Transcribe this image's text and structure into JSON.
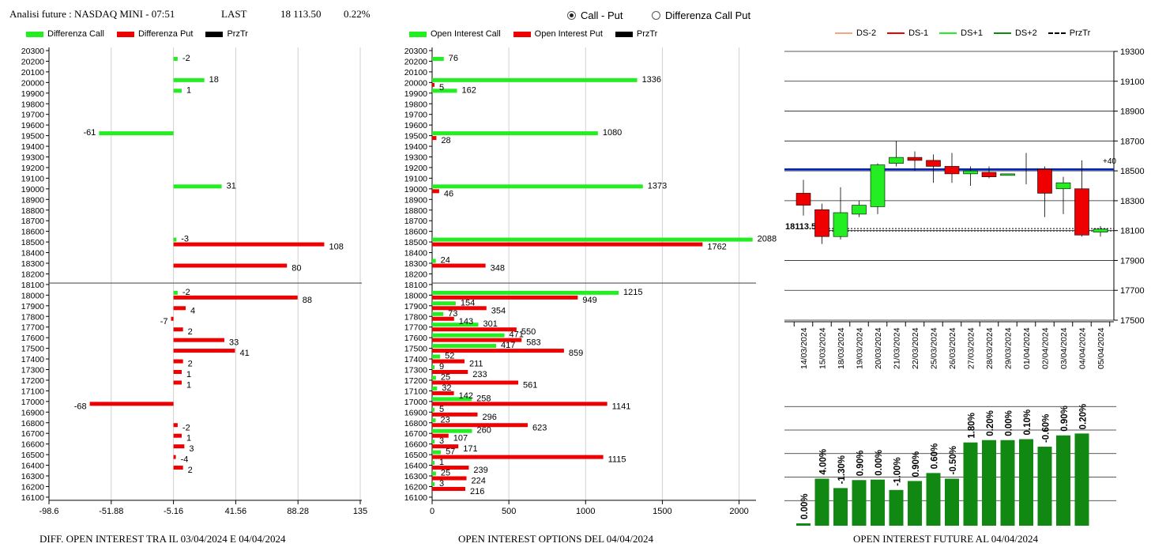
{
  "header": {
    "instrument": "Analisi future : NASDAQ MINI - 07:51",
    "last_label": "LAST",
    "last_value": "18 113.50",
    "change_pct": "0.22%"
  },
  "radios": [
    {
      "label": "Call - Put",
      "selected": true
    },
    {
      "label": "Differenza Call Put",
      "selected": false
    }
  ],
  "captions": {
    "left": "DIFF. OPEN INTEREST TRA IL 03/04/2024 E 04/04/2024",
    "middle": "OPEN INTEREST OPTIONS DEL 04/04/2024",
    "right": "OPEN INTEREST FUTURE AL 04/04/2024"
  },
  "legends": {
    "left": [
      {
        "label": "Differenza Call",
        "color": "#22ee22"
      },
      {
        "label": "Differenza Put",
        "color": "#ee0000"
      },
      {
        "label": "PrzTr",
        "color": "#000000"
      }
    ],
    "middle": [
      {
        "label": "Open Interest Call",
        "color": "#22ee22"
      },
      {
        "label": "Open Interest Put",
        "color": "#ee0000"
      },
      {
        "label": "PrzTr",
        "color": "#000000"
      }
    ],
    "right": [
      {
        "label": "DS-2",
        "color": "#f4a582"
      },
      {
        "label": "DS-1",
        "color": "#ee0000"
      },
      {
        "label": "DS+1",
        "color": "#22ee22"
      },
      {
        "label": "DS+2",
        "color": "#118811"
      },
      {
        "label": "PrzTr",
        "color": "#000000"
      }
    ]
  },
  "chart_data": [
    {
      "type": "bar",
      "orientation": "horizontal",
      "strikes": [
        20300,
        20200,
        20100,
        20000,
        19900,
        19800,
        19700,
        19600,
        19500,
        19400,
        19300,
        19200,
        19100,
        19000,
        18900,
        18800,
        18700,
        18600,
        18500,
        18400,
        18300,
        18200,
        18100,
        18000,
        17900,
        17800,
        17700,
        17600,
        17500,
        17400,
        17300,
        17200,
        17100,
        17000,
        16900,
        16800,
        16700,
        16600,
        16500,
        16400,
        16300,
        16200,
        16100
      ],
      "xticks": [
        "-98.6",
        "-51.88",
        "-5.16",
        "41.56",
        "88.28",
        "135"
      ],
      "xlim": [
        -98.6,
        135
      ],
      "price_level": 18113.5,
      "series": [
        {
          "name": "Differenza Call",
          "color": "#22ee22",
          "values": [
            null,
            -2,
            null,
            18,
            1,
            null,
            null,
            null,
            -61,
            null,
            null,
            null,
            null,
            31,
            null,
            null,
            null,
            null,
            -3,
            null,
            null,
            null,
            null,
            -2,
            null,
            null,
            null,
            null,
            null,
            null,
            null,
            null,
            null,
            null,
            null,
            null,
            null,
            null,
            null,
            null,
            null,
            null,
            null
          ]
        },
        {
          "name": "Differenza Put",
          "color": "#ee0000",
          "values": [
            null,
            null,
            null,
            null,
            null,
            null,
            null,
            null,
            null,
            null,
            null,
            null,
            null,
            null,
            null,
            null,
            null,
            null,
            108,
            null,
            80,
            null,
            null,
            88,
            4,
            -7,
            2,
            33,
            41,
            2,
            1,
            1,
            null,
            -68,
            null,
            -2,
            1,
            3,
            -4,
            2,
            null,
            null,
            null
          ]
        }
      ]
    },
    {
      "type": "bar",
      "orientation": "horizontal",
      "strikes": [
        20300,
        20200,
        20100,
        20000,
        19900,
        19800,
        19700,
        19600,
        19500,
        19400,
        19300,
        19200,
        19100,
        19000,
        18900,
        18800,
        18700,
        18600,
        18500,
        18400,
        18300,
        18200,
        18100,
        18000,
        17900,
        17800,
        17700,
        17600,
        17500,
        17400,
        17300,
        17200,
        17100,
        17000,
        16900,
        16800,
        16700,
        16600,
        16500,
        16400,
        16300,
        16200,
        16100
      ],
      "xticks": [
        "0",
        "500",
        "1000",
        "1500",
        "2000"
      ],
      "xlim": [
        0,
        2100
      ],
      "price_level": 18113.5,
      "series": [
        {
          "name": "Open Interest Call",
          "color": "#22ee22",
          "values": [
            null,
            76,
            null,
            1336,
            162,
            null,
            null,
            null,
            1080,
            null,
            null,
            null,
            null,
            1373,
            null,
            null,
            null,
            null,
            2088,
            null,
            24,
            null,
            null,
            1215,
            154,
            73,
            301,
            471,
            417,
            52,
            9,
            25,
            32,
            258,
            5,
            23,
            260,
            3,
            57,
            1,
            25,
            3,
            null
          ]
        },
        {
          "name": "Open Interest Put",
          "color": "#ee0000",
          "values": [
            null,
            null,
            null,
            5,
            null,
            null,
            null,
            null,
            28,
            null,
            null,
            null,
            null,
            46,
            null,
            null,
            null,
            null,
            1762,
            null,
            348,
            null,
            null,
            949,
            354,
            143,
            550,
            583,
            859,
            211,
            233,
            561,
            142,
            1141,
            296,
            623,
            107,
            171,
            1115,
            239,
            224,
            216,
            null
          ]
        }
      ]
    },
    {
      "type": "candlestick",
      "dates": [
        "14/03/2024",
        "15/03/2024",
        "18/03/2024",
        "19/03/2024",
        "20/03/2024",
        "21/03/2024",
        "22/03/2024",
        "25/03/2024",
        "26/03/2024",
        "27/03/2024",
        "28/03/2024",
        "29/03/2024",
        "01/04/2024",
        "02/04/2024",
        "03/04/2024",
        "04/04/2024",
        "05/04/2024"
      ],
      "open": [
        18350,
        18240,
        18060,
        18210,
        18260,
        18550,
        18590,
        18570,
        18530,
        18480,
        18490,
        18480,
        null,
        18510,
        18380,
        18380,
        18090
      ],
      "close": [
        18270,
        18060,
        18220,
        18270,
        18540,
        18590,
        18570,
        18530,
        18480,
        18500,
        18460,
        18480,
        null,
        18350,
        18420,
        18070,
        18110
      ],
      "high": [
        18440,
        18280,
        18390,
        18300,
        18550,
        18700,
        18630,
        18610,
        18620,
        18530,
        18530,
        18480,
        18620,
        18530,
        18460,
        18570,
        18130
      ],
      "low": [
        18200,
        18010,
        18040,
        18190,
        18210,
        18530,
        18500,
        18420,
        18420,
        18400,
        18450,
        18480,
        18410,
        18190,
        18210,
        18060,
        18060
      ],
      "yticks": [
        19300,
        19100,
        18900,
        18700,
        18500,
        18300,
        18100,
        17900,
        17700,
        17500
      ],
      "ylim": [
        17500,
        19300
      ],
      "price_level": 18113.5,
      "price_label": "18113.5",
      "ds_level": 18510,
      "ds_label": "+40"
    },
    {
      "type": "bar",
      "categories": [
        "14/03/2024",
        "15/03/2024",
        "18/03/2024",
        "19/03/2024",
        "20/03/2024",
        "21/03/2024",
        "22/03/2024",
        "25/03/2024",
        "26/03/2024",
        "27/03/2024",
        "28/03/2024",
        "29/03/2024",
        "01/04/2024",
        "02/04/2024",
        "03/04/2024",
        "04/04/2024"
      ],
      "values": [
        0.05,
        1.0,
        0.8,
        0.97,
        0.98,
        0.76,
        0.95,
        1.12,
        1.0,
        1.77,
        1.82,
        1.82,
        1.84,
        1.68,
        1.92,
        1.96
      ],
      "labels": [
        "0.00%",
        "4.00%",
        "-1.30%",
        "0.90%",
        "0.00%",
        "-1.00%",
        "0.90%",
        "0.60%",
        "-0.50%",
        "1.80%",
        "0.20%",
        "0.00%",
        "0.10%",
        "-0.60%",
        "0.90%",
        "0.20%"
      ],
      "color": "#118811"
    }
  ]
}
